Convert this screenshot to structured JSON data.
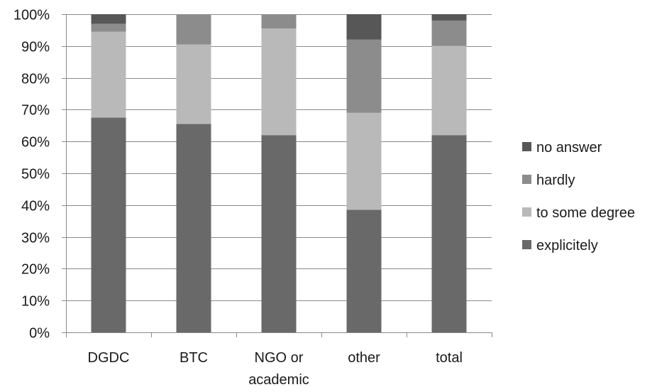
{
  "chart_data": {
    "type": "bar",
    "stacked": true,
    "normalized": true,
    "categories": [
      [
        "DGDC"
      ],
      [
        "BTC"
      ],
      [
        "NGO or",
        "academic"
      ],
      [
        "other"
      ],
      [
        "total"
      ]
    ],
    "series": [
      {
        "name": "explicitely",
        "values": [
          67.5,
          65.5,
          62.0,
          38.5,
          62.0
        ],
        "color": "#696969"
      },
      {
        "name": "to some degree",
        "values": [
          27.0,
          25.0,
          33.5,
          30.5,
          28.0
        ],
        "color": "#b9b9b9"
      },
      {
        "name": "hardly",
        "values": [
          2.5,
          9.5,
          4.5,
          23.0,
          8.0
        ],
        "color": "#8c8c8c"
      },
      {
        "name": "no answer",
        "values": [
          3.0,
          0.0,
          0.0,
          8.0,
          2.0
        ],
        "color": "#575757"
      }
    ],
    "yticks": [
      "0%",
      "10%",
      "20%",
      "30%",
      "40%",
      "50%",
      "60%",
      "70%",
      "80%",
      "90%",
      "100%"
    ],
    "ylim": [
      0,
      100
    ],
    "grid": true,
    "legend": {
      "placement": "right",
      "order": [
        "no answer",
        "hardly",
        "to some degree",
        "explicitely"
      ]
    },
    "title": "",
    "xlabel": "",
    "ylabel": ""
  }
}
